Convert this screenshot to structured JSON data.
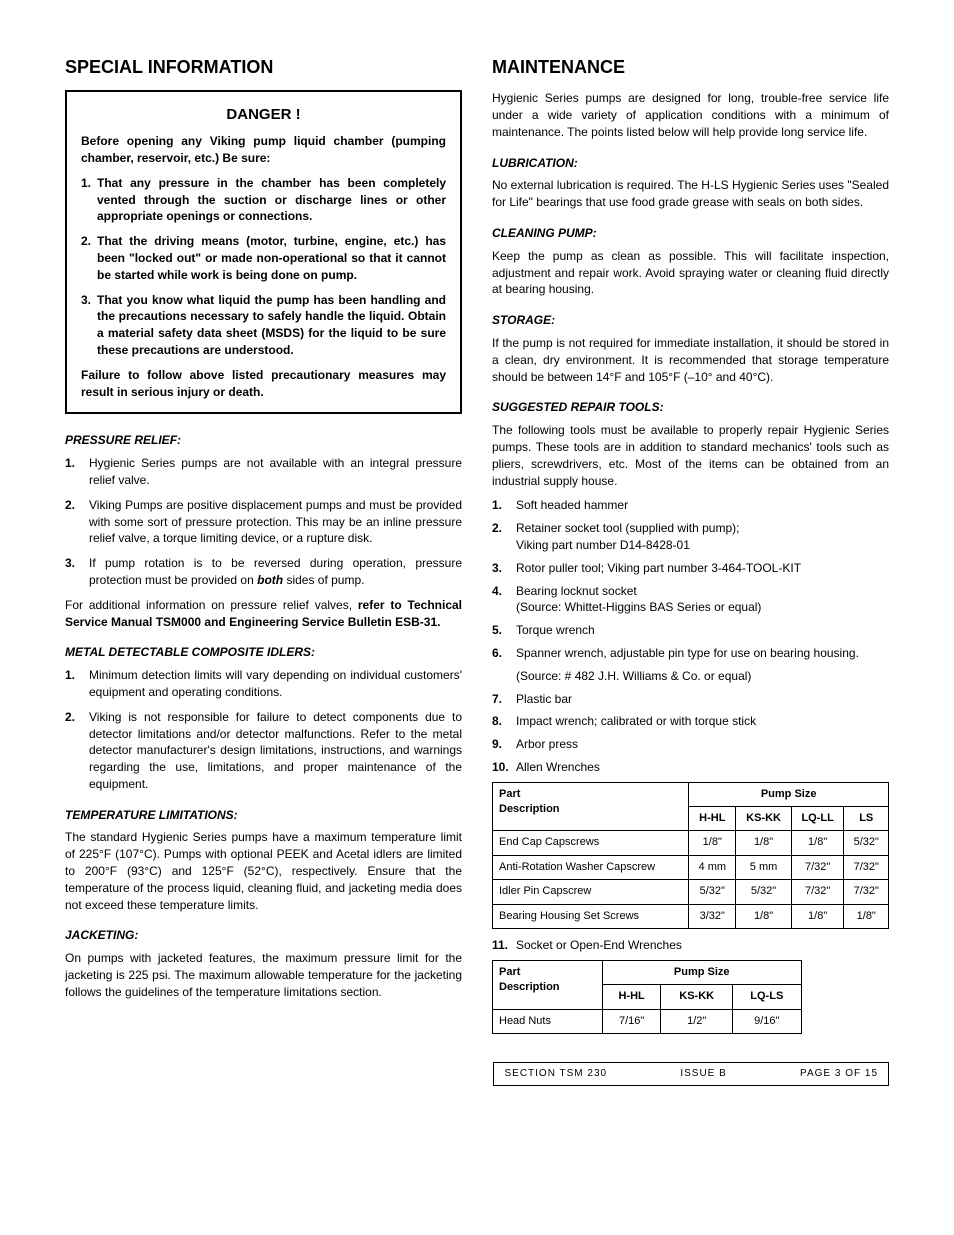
{
  "left": {
    "title": "SPECIAL INFORMATION",
    "danger": {
      "title": "DANGER !",
      "intro": "Before opening any Viking pump liquid chamber (pumping chamber, reservoir, etc.) Be sure:",
      "items": [
        "That any pressure in the chamber has been completely vented through the suction or discharge lines or other appropriate openings or connections.",
        "That the driving means (motor, turbine, engine, etc.) has been \"locked out\" or made non-operational so that it cannot be started while work is being done on pump.",
        "That you know what liquid the pump has been handling and the precautions necessary to safely handle the liquid. Obtain a material safety data sheet (MSDS) for the liquid to be sure these precautions are understood."
      ],
      "footer": "Failure to follow above listed precautionary measures may result in serious injury or death."
    },
    "pressure": {
      "head": "PRESSURE RELIEF:",
      "items": [
        "Hygienic Series pumps are not available with an integral pressure relief valve.",
        "Viking Pumps are positive displacement pumps and must be provided with some sort of pressure protection. This may be an inline pressure relief valve, a torque limiting device, or a rupture disk."
      ],
      "item3_pre": "If pump rotation is to be reversed during operation, pressure protection must be provided on ",
      "item3_both": "both",
      "item3_post": " sides of pump.",
      "footer_pre": "For additional information on pressure relief valves, ",
      "footer_bold": "refer to Technical Service Manual TSM000 and Engineering Service Bulletin ESB-31."
    },
    "metal": {
      "head": "METAL DETECTABLE COMPOSITE IDLERS:",
      "items": [
        "Minimum detection limits will vary depending on individual customers' equipment and operating conditions.",
        "Viking is not responsible for failure to detect components due to detector limitations and/or detector malfunctions. Refer to the metal detector manufacturer's design limitations, instructions, and warnings regarding the use, limitations, and proper maintenance of the equipment."
      ]
    },
    "temp": {
      "head": "TEMPERATURE LIMITATIONS:",
      "body": "The standard Hygienic Series pumps have a maximum temperature limit of 225°F (107°C). Pumps with optional PEEK and Acetal idlers are limited to 200°F (93°C) and 125°F (52°C), respectively. Ensure that the temperature of the process liquid, cleaning fluid, and jacketing media does not exceed these temperature limits."
    },
    "jacket": {
      "head": "JACKETING:",
      "body": "On pumps with jacketed features, the maximum pressure limit for the jacketing is 225 psi. The maximum allowable temperature for the jacketing follows the guidelines of the temperature limitations section."
    }
  },
  "right": {
    "title": "MAINTENANCE",
    "intro": "Hygienic Series pumps are designed for long, trouble-free service life under a wide variety of application conditions with a minimum of maintenance. The points listed below will help provide long service life.",
    "lub": {
      "head": "LUBRICATION:",
      "body": "No external lubrication is required. The H-LS Hygienic Series uses \"Sealed for Life\" bearings that use food grade grease with seals on both sides."
    },
    "clean": {
      "head": "CLEANING PUMP:",
      "body": "Keep the pump as clean as possible. This will facilitate inspection, adjustment and repair work. Avoid spraying water or cleaning fluid directly at bearing housing."
    },
    "storage": {
      "head": "STORAGE:",
      "body": "If the pump is not required for immediate installation, it should be stored in a clean, dry environment. It is recommended that storage temperature should be between 14°F and 105°F (–10° and 40°C)."
    },
    "tools": {
      "head": "SUGGESTED REPAIR TOOLS:",
      "intro": "The following tools must be available to properly repair Hygienic Series pumps. These tools are in addition to standard mechanics' tools such as pliers, screwdrivers, etc. Most of the items can be obtained from an industrial supply house.",
      "items": [
        {
          "n": "1.",
          "t": "Soft headed hammer"
        },
        {
          "n": "2.",
          "t": "Retainer socket tool (supplied with pump);\nViking part number D14-8428-01"
        },
        {
          "n": "3.",
          "t": "Rotor puller tool; Viking part number 3-464-TOOL-KIT"
        },
        {
          "n": "4.",
          "t": "Bearing locknut socket\n(Source: Whittet-Higgins BAS Series or equal)"
        },
        {
          "n": "5.",
          "t": "Torque wrench"
        },
        {
          "n": "6.",
          "t": "Spanner wrench, adjustable pin type for use on bearing housing.",
          "src": "(Source: # 482 J.H. Williams & Co. or equal)"
        },
        {
          "n": "7.",
          "t": "Plastic bar"
        },
        {
          "n": "8.",
          "t": "Impact wrench; calibrated or with torque stick"
        },
        {
          "n": "9.",
          "t": "Arbor press"
        },
        {
          "n": "10.",
          "t": "Allen Wrenches"
        }
      ],
      "item11": "Socket or Open-End Wrenches"
    },
    "table1": {
      "part_label": "Part Description",
      "pump_label": "Pump Size",
      "cols": [
        "H-HL",
        "KS-KK",
        "LQ-LL",
        "LS"
      ],
      "rows": [
        {
          "desc": "End Cap Capscrews",
          "v": [
            "1/8\"",
            "1/8\"",
            "1/8\"",
            "5/32\""
          ]
        },
        {
          "desc": "Anti-Rotation Washer Capscrew",
          "v": [
            "4 mm",
            "5 mm",
            "7/32\"",
            "7/32\""
          ]
        },
        {
          "desc": "Idler Pin Capscrew",
          "v": [
            "5/32\"",
            "5/32\"",
            "7/32\"",
            "7/32\""
          ]
        },
        {
          "desc": "Bearing Housing Set Screws",
          "v": [
            "3/32\"",
            "1/8\"",
            "1/8\"",
            "1/8\""
          ]
        }
      ]
    },
    "table2": {
      "part_label": "Part Description",
      "pump_label": "Pump Size",
      "cols": [
        "H-HL",
        "KS-KK",
        "LQ-LS"
      ],
      "rows": [
        {
          "desc": "Head Nuts",
          "v": [
            "7/16\"",
            "1/2\"",
            "9/16\""
          ]
        }
      ]
    }
  },
  "footer": {
    "section": "SECTION  TSM   230",
    "issue": "ISSUE   B",
    "page": "PAGE  3  OF   15"
  }
}
